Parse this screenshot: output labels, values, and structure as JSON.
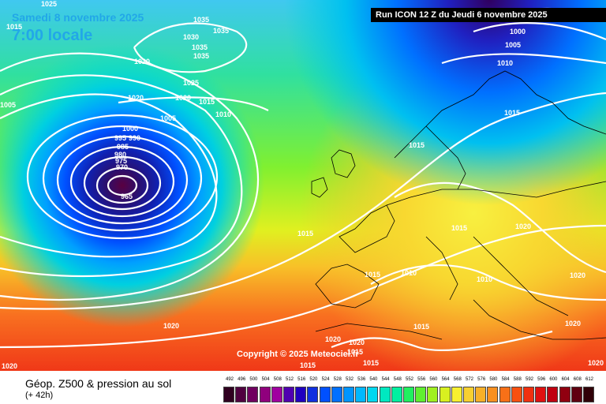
{
  "header": {
    "run_info": "Run ICON 12 Z du Jeudi 6 novembre 2025",
    "date": "Samedi 8 novembre 2025",
    "local_time": "7:00 locale"
  },
  "copyright": "Copyright © 2025 Meteociel.fr",
  "footer": {
    "title": "Géop. Z500 & pression au sol",
    "forecast_offset": "(+ 42h)"
  },
  "isobar_labels": [
    "1025",
    "1015",
    "1035",
    "1030",
    "1035",
    "1035",
    "1035",
    "1000",
    "1005",
    "1010",
    "1020",
    "1020",
    "1025",
    "1005",
    "1020",
    "1015",
    "1010",
    "1005",
    "1000",
    "995",
    "990",
    "985",
    "980",
    "975",
    "970",
    "965",
    "1015",
    "1015",
    "1015",
    "1015",
    "1020",
    "1015",
    "1010",
    "1010",
    "1020",
    "1020",
    "1020",
    "1015",
    "1020",
    "1020",
    "1015",
    "1015",
    "1020",
    "1015",
    "1020"
  ],
  "scale": {
    "values": [
      "492",
      "496",
      "500",
      "504",
      "508",
      "512",
      "516",
      "520",
      "524",
      "528",
      "532",
      "536",
      "540",
      "544",
      "548",
      "552",
      "556",
      "560",
      "564",
      "568",
      "572",
      "576",
      "580",
      "584",
      "588",
      "592",
      "596",
      "600",
      "604",
      "608",
      "612"
    ],
    "colors": [
      "#300020",
      "#500040",
      "#700060",
      "#90007d",
      "#a000a0",
      "#5000b0",
      "#2000c0",
      "#1030e0",
      "#0050ff",
      "#0070ff",
      "#0095ff",
      "#00b8ff",
      "#00d8f0",
      "#00e8c0",
      "#00f0a0",
      "#20f060",
      "#60f030",
      "#a0f020",
      "#d8f020",
      "#f8f030",
      "#f8d030",
      "#f8b028",
      "#f89020",
      "#f87018",
      "#f85010",
      "#f03010",
      "#e01010",
      "#c00010",
      "#900010",
      "#600010",
      "#300008"
    ]
  }
}
